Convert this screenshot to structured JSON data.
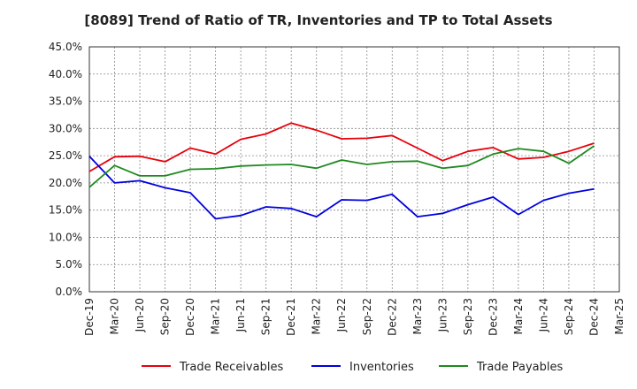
{
  "chart_data": {
    "type": "line",
    "title": "[8089]  Trend of Ratio of TR, Inventories and TP to Total Assets",
    "xlabel": "",
    "ylabel": "",
    "x": [
      "Dec-19",
      "Mar-20",
      "Jun-20",
      "Sep-20",
      "Dec-20",
      "Mar-21",
      "Jun-21",
      "Sep-21",
      "Dec-21",
      "Mar-22",
      "Jun-22",
      "Sep-22",
      "Dec-22",
      "Mar-23",
      "Jun-23",
      "Sep-23",
      "Dec-23",
      "Mar-24",
      "Jun-24",
      "Sep-24",
      "Dec-24",
      "Mar-25"
    ],
    "ylim": [
      0,
      45
    ],
    "yticks": [
      0,
      5,
      10,
      15,
      20,
      25,
      30,
      35,
      40,
      45
    ],
    "ytick_labels": [
      "0.0%",
      "5.0%",
      "10.0%",
      "15.0%",
      "20.0%",
      "25.0%",
      "30.0%",
      "35.0%",
      "40.0%",
      "45.0%"
    ],
    "grid": true,
    "legend_position": "bottom",
    "series": [
      {
        "name": "Trade Receivables",
        "color": "#e8000b",
        "values": [
          22.1,
          24.8,
          24.9,
          23.9,
          26.4,
          25.3,
          28.0,
          29.0,
          31.0,
          29.7,
          28.1,
          28.2,
          28.7,
          26.4,
          24.1,
          25.8,
          26.5,
          24.4,
          24.7,
          25.8,
          27.3,
          null
        ]
      },
      {
        "name": "Inventories",
        "color": "#0000e0",
        "values": [
          24.9,
          20.0,
          20.4,
          19.1,
          18.2,
          13.4,
          14.0,
          15.6,
          15.3,
          13.8,
          16.9,
          16.8,
          17.9,
          13.8,
          14.4,
          16.0,
          17.4,
          14.2,
          16.8,
          18.1,
          18.9,
          null
        ]
      },
      {
        "name": "Trade Payables",
        "color": "#1f8a1f",
        "values": [
          19.2,
          23.2,
          21.3,
          21.3,
          22.5,
          22.6,
          23.1,
          23.3,
          23.4,
          22.7,
          24.2,
          23.4,
          23.9,
          24.0,
          22.7,
          23.2,
          25.3,
          26.3,
          25.8,
          23.6,
          26.8,
          null
        ]
      }
    ]
  }
}
